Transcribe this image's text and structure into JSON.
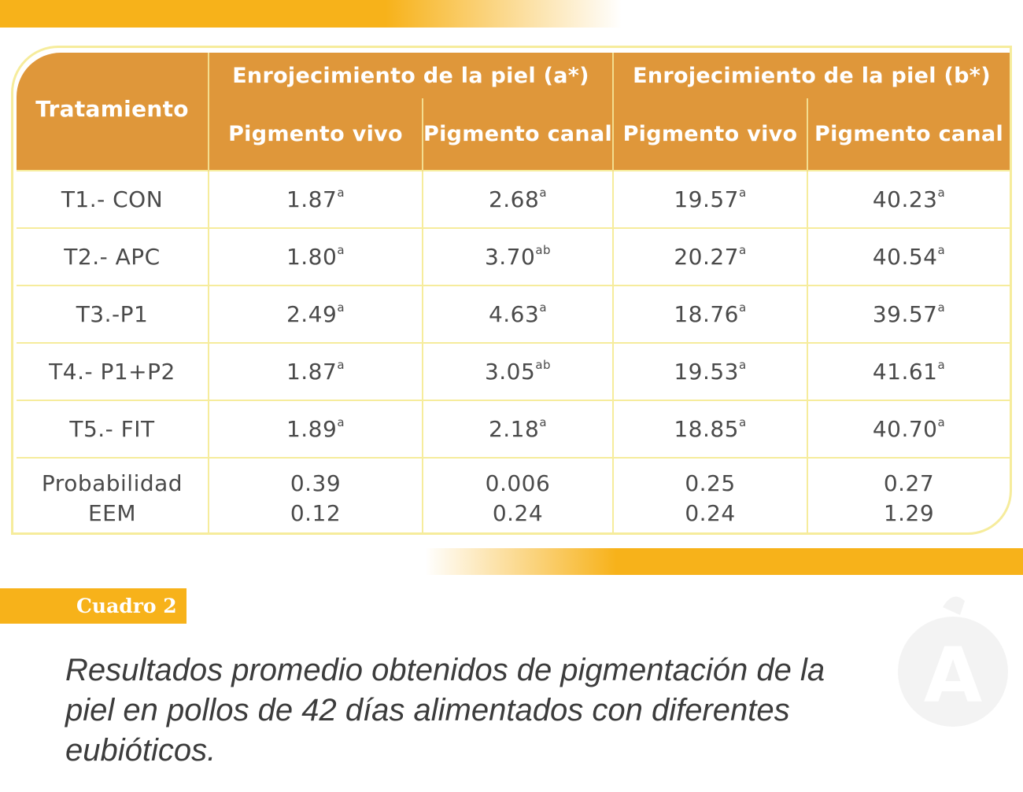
{
  "table": {
    "header": {
      "treatment": "Tratamiento",
      "group_a": "Enrojecimiento de la piel (a*)",
      "group_b": "Enrojecimiento de la piel (b*)",
      "col_live_a": "Pigmento vivo",
      "col_carcass_a": "Pigmento canal",
      "col_live_b": "Pigmento vivo",
      "col_carcass_b": "Pigmento canal"
    },
    "rows": [
      {
        "treatment": "T1.- CON",
        "a_live": "1.87",
        "a_live_sup": "a",
        "a_carcass": "2.68",
        "a_carcass_sup": "a",
        "b_live": "19.57",
        "b_live_sup": "a",
        "b_carcass": "40.23",
        "b_carcass_sup": "a"
      },
      {
        "treatment": "T2.- APC",
        "a_live": "1.80",
        "a_live_sup": "a",
        "a_carcass": "3.70",
        "a_carcass_sup": "ab",
        "b_live": "20.27",
        "b_live_sup": "a",
        "b_carcass": "40.54",
        "b_carcass_sup": "a"
      },
      {
        "treatment": "T3.-P1",
        "a_live": "2.49",
        "a_live_sup": "a",
        "a_carcass": "4.63",
        "a_carcass_sup": "a",
        "b_live": "18.76",
        "b_live_sup": "a",
        "b_carcass": "39.57",
        "b_carcass_sup": "a"
      },
      {
        "treatment": "T4.- P1+P2",
        "a_live": "1.87",
        "a_live_sup": "a",
        "a_carcass": "3.05",
        "a_carcass_sup": "ab",
        "b_live": "19.53",
        "b_live_sup": "a",
        "b_carcass": "41.61",
        "b_carcass_sup": "a"
      },
      {
        "treatment": "T5.- FIT",
        "a_live": "1.89",
        "a_live_sup": "a",
        "a_carcass": "2.18",
        "a_carcass_sup": "a",
        "b_live": "18.85",
        "b_live_sup": "a",
        "b_carcass": "40.70",
        "b_carcass_sup": "a"
      }
    ],
    "stats": {
      "label_prob": "Probabilidad",
      "label_eem": "EEM",
      "prob": [
        "0.39",
        "0.006",
        "0.25",
        "0.27"
      ],
      "eem": [
        "0.12",
        "0.24",
        "0.24",
        "1.29"
      ]
    }
  },
  "caption": {
    "label": "Cuadro 2",
    "text": "Resultados promedio obtenidos de pigmentación de la piel en pollos de 42 días alimentados con diferentes eubióticos."
  },
  "watermark": {
    "letter": "A",
    "icon": "logo-watermark-icon"
  },
  "colors": {
    "header_bg": "#df973a",
    "accent_yellow": "#f7b21a",
    "grid_line": "#f6ec9c",
    "body_text": "#4a4a4a"
  }
}
